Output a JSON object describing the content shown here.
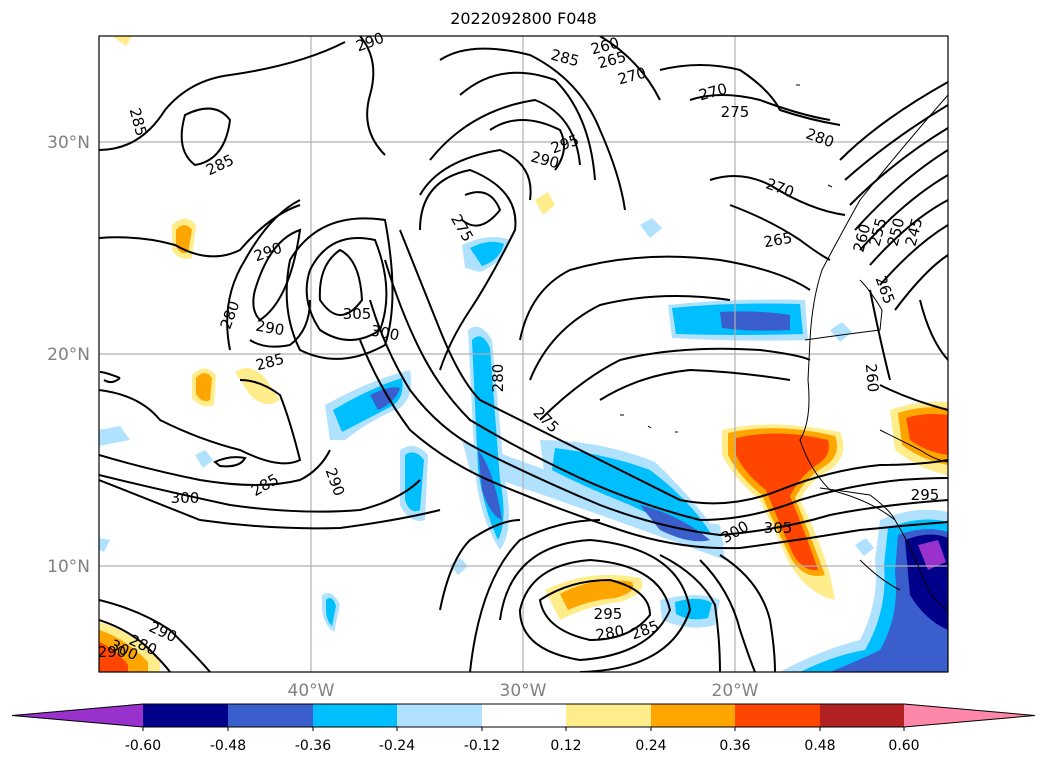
{
  "title": "2022092800 F048",
  "lat_ticks": [
    "30°N",
    "20°N",
    "10°N"
  ],
  "lon_ticks": [
    "40°W",
    "30°W",
    "20°W"
  ],
  "colorbar": {
    "colors": [
      "#9932cc",
      "#00008b",
      "#3a5fcd",
      "#00bfff",
      "#b0e2ff",
      "#ffffff",
      "#ffec8b",
      "#ffa500",
      "#ff4500",
      "#b22222",
      "#ff88aa"
    ],
    "labels": [
      "-0.60",
      "-0.48",
      "-0.36",
      "-0.24",
      "-0.12",
      "0.12",
      "0.24",
      "0.36",
      "0.48",
      "0.60"
    ]
  },
  "contour_labels": [
    "290",
    "285",
    "260",
    "265",
    "270",
    "270",
    "275",
    "280",
    "285",
    "295",
    "290",
    "285",
    "270",
    "265",
    "260",
    "255",
    "250",
    "245",
    "265",
    "275",
    "290",
    "280",
    "290",
    "305",
    "300",
    "285",
    "280",
    "260",
    "275",
    "300",
    "295",
    "305",
    "285",
    "290",
    "300",
    "295",
    "280",
    "285",
    "290",
    "280",
    "300",
    "290"
  ],
  "colors": {
    "contour": "#000000",
    "grid": "#b0b0b0",
    "tick_text": "#808080"
  }
}
